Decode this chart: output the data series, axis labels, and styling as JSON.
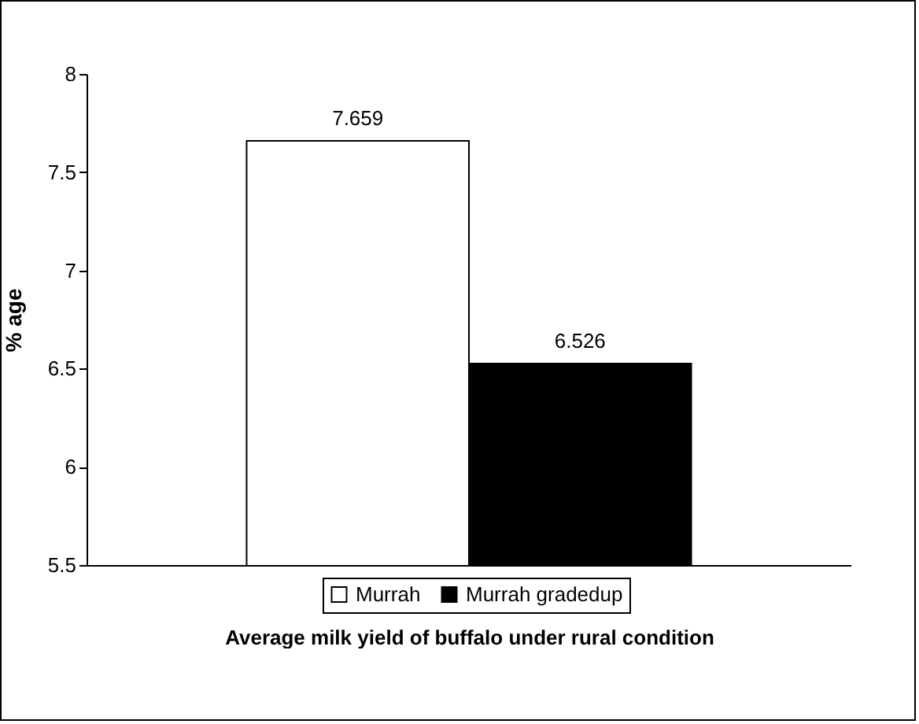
{
  "chart_data": {
    "type": "bar",
    "xlabel": "Average milk yield of buffalo under rural condition",
    "ylabel": "% age",
    "categories": [
      null
    ],
    "series": [
      {
        "name": "Murrah",
        "color": "#ffffff",
        "values": [
          7.659
        ]
      },
      {
        "name": "Murrah gradedup",
        "color": "#000000",
        "values": [
          6.526
        ]
      }
    ],
    "ylim": [
      5.5,
      8
    ],
    "yticks": [
      5.5,
      6,
      6.5,
      7,
      7.5,
      8
    ],
    "data_labels": true,
    "legend": "bottom",
    "grid": false
  }
}
